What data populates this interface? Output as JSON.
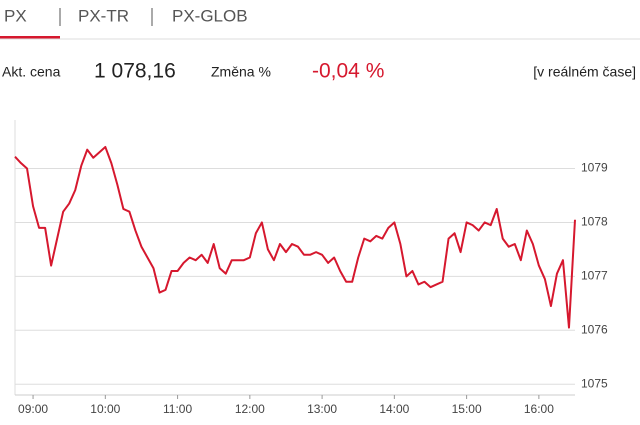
{
  "tabs": [
    "PX",
    "PX-TR",
    "PX-GLOB"
  ],
  "summary": {
    "price_label": "Akt. cena",
    "price": "1 078,16",
    "change_label": "Změna %",
    "change": "-0,04 %",
    "realtime": "[v reálném čase]"
  },
  "chart_data": {
    "type": "line",
    "color": "#d6182e",
    "grid": true,
    "categories": [
      null,
      null,
      null,
      "09:00",
      null,
      null,
      null,
      null,
      null,
      null,
      null,
      null,
      null,
      null,
      null,
      "10:00",
      null,
      null,
      null,
      null,
      null,
      null,
      null,
      null,
      null,
      null,
      null,
      "11:00",
      null,
      null,
      null,
      null,
      null,
      null,
      null,
      null,
      null,
      null,
      null,
      "12:00",
      null,
      null,
      null,
      null,
      null,
      null,
      null,
      null,
      null,
      null,
      null,
      "13:00",
      null,
      null,
      null,
      null,
      null,
      null,
      null,
      null,
      null,
      null,
      null,
      "14:00",
      null,
      null,
      null,
      null,
      null,
      null,
      null,
      null,
      null,
      null,
      null,
      "15:00",
      null,
      null,
      null,
      null,
      null,
      null,
      null,
      null,
      null,
      null,
      null,
      "16:00",
      null,
      null,
      null,
      null,
      null,
      null
    ],
    "values": [
      1079.22,
      1079.1,
      1079.0,
      1078.3,
      1077.9,
      1077.9,
      1077.2,
      1077.7,
      1078.2,
      1078.35,
      1078.6,
      1079.05,
      1079.35,
      1079.2,
      1079.3,
      1079.4,
      1079.1,
      1078.7,
      1078.25,
      1078.2,
      1077.85,
      1077.55,
      1077.35,
      1077.15,
      1076.7,
      1076.75,
      1077.1,
      1077.1,
      1077.25,
      1077.35,
      1077.3,
      1077.4,
      1077.25,
      1077.6,
      1077.15,
      1077.05,
      1077.3,
      1077.3,
      1077.3,
      1077.35,
      1077.8,
      1078.0,
      1077.5,
      1077.3,
      1077.6,
      1077.45,
      1077.6,
      1077.55,
      1077.4,
      1077.4,
      1077.45,
      1077.4,
      1077.25,
      1077.35,
      1077.1,
      1076.9,
      1076.9,
      1077.35,
      1077.7,
      1077.65,
      1077.75,
      1077.7,
      1077.9,
      1078.0,
      1077.6,
      1077.0,
      1077.1,
      1076.85,
      1076.9,
      1076.8,
      1076.85,
      1076.9,
      1077.7,
      1077.8,
      1077.45,
      1078.0,
      1077.95,
      1077.85,
      1078.0,
      1077.95,
      1078.25,
      1077.7,
      1077.55,
      1077.6,
      1077.3,
      1077.85,
      1077.6,
      1077.2,
      1076.95,
      1076.45,
      1077.05,
      1077.3,
      1076.05,
      1078.05
    ],
    "ylim": [
      1074.8,
      1079.9
    ],
    "yticks": [
      1075,
      1076,
      1077,
      1078,
      1079
    ]
  }
}
